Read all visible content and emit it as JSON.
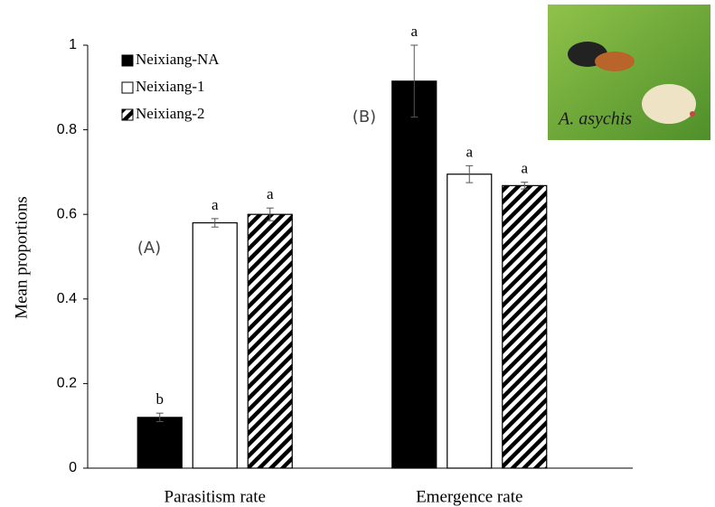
{
  "chart_data": {
    "type": "bar",
    "y_label": "Mean proportions",
    "categories": [
      "Parasitism rate",
      "Emergence rate"
    ],
    "series": [
      {
        "name": "Neixiang-NA",
        "color": "#000000",
        "pattern": "solid",
        "values": [
          0.12,
          0.915
        ],
        "errors": [
          0.01,
          0.085
        ],
        "sig_labels": [
          "b",
          "a"
        ]
      },
      {
        "name": "Neixiang-1",
        "color": "#ffffff",
        "pattern": "solid",
        "values": [
          0.58,
          0.695
        ],
        "errors": [
          0.01,
          0.02
        ],
        "sig_labels": [
          "a",
          "a"
        ]
      },
      {
        "name": "Neixiang-2",
        "color": "#000000",
        "pattern": "hatch",
        "values": [
          0.6,
          0.668
        ],
        "errors": [
          0.015,
          0.008
        ],
        "sig_labels": [
          "a",
          "a"
        ]
      }
    ],
    "ylim": [
      0,
      1
    ],
    "yticks": [
      0,
      0.2,
      0.4,
      0.6,
      0.8,
      1
    ],
    "annotations": [
      "(A)",
      "(B)"
    ],
    "inset_label": "A. asychis"
  }
}
